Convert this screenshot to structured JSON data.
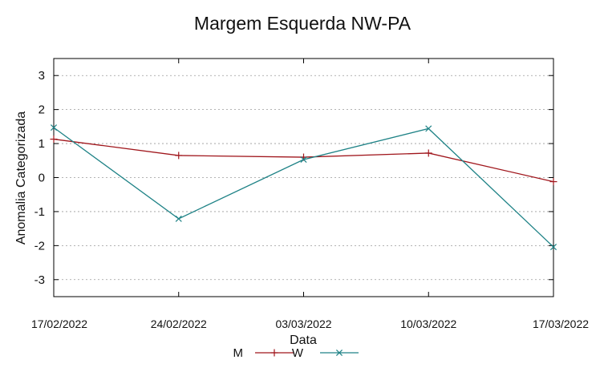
{
  "chart_data": {
    "type": "line",
    "title": "Margem Esquerda NW-PA",
    "xlabel": "Data",
    "ylabel": "Anomalia Categorizada",
    "categories": [
      "17/02/2022",
      "24/02/2022",
      "03/03/2022",
      "10/03/2022",
      "17/03/2022"
    ],
    "ylim": [
      -3.5,
      3.5
    ],
    "yticks": [
      3,
      2,
      1,
      0,
      -1,
      -2,
      -3
    ],
    "grid": true,
    "legend_position": "bottom",
    "series": [
      {
        "name": "M",
        "color": "#a0161c",
        "marker": "plus",
        "values": [
          1.13,
          0.65,
          0.6,
          0.72,
          -0.12
        ]
      },
      {
        "name": "W",
        "color": "#1e8286",
        "marker": "cross",
        "values": [
          1.47,
          -1.21,
          0.53,
          1.44,
          -2.04
        ]
      }
    ]
  }
}
